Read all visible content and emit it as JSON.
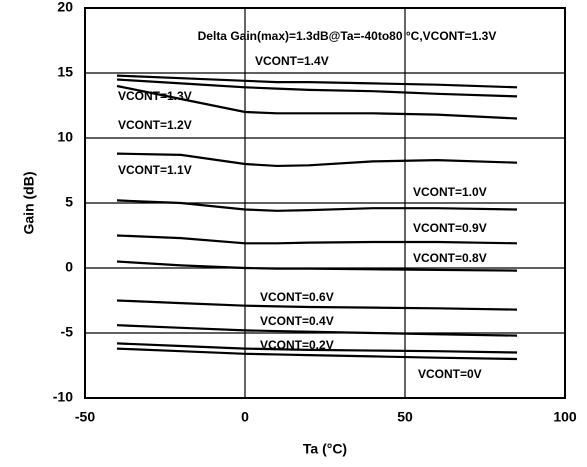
{
  "chart_data": {
    "type": "line",
    "annotation": "Delta Gain(max)=1.3dB@Ta=-40to80 °C,VCONT=1.3V",
    "x_label": "Ta (°C)",
    "y_label": "Gain (dB)",
    "x": [
      -40,
      -20,
      0,
      10,
      20,
      40,
      60,
      85
    ],
    "series": [
      {
        "name": "VCONT=1.4V",
        "color": "#000000",
        "values": [
          14.8,
          14.6,
          14.4,
          14.3,
          14.3,
          14.2,
          14.1,
          13.9
        ]
      },
      {
        "name": "VCONT=1.3V",
        "color": "#000000",
        "values": [
          14.5,
          14.2,
          13.9,
          13.8,
          13.7,
          13.6,
          13.4,
          13.2
        ]
      },
      {
        "name": "VCONT=1.2V",
        "color": "#000000",
        "values": [
          14.0,
          13.0,
          12.0,
          11.9,
          11.9,
          11.9,
          11.8,
          11.5
        ]
      },
      {
        "name": "VCONT=1.1V",
        "color": "#000000",
        "values": [
          8.8,
          8.7,
          8.0,
          7.85,
          7.9,
          8.2,
          8.3,
          8.1
        ]
      },
      {
        "name": "VCONT=1.0V",
        "color": "#000000",
        "values": [
          5.2,
          5.0,
          4.5,
          4.4,
          4.45,
          4.6,
          4.6,
          4.5
        ]
      },
      {
        "name": "VCONT=0.9V",
        "color": "#000000",
        "values": [
          2.5,
          2.3,
          1.9,
          1.9,
          1.95,
          2.0,
          2.0,
          1.9
        ]
      },
      {
        "name": "VCONT=0.8V",
        "color": "#000000",
        "values": [
          0.5,
          0.2,
          0.0,
          -0.05,
          -0.05,
          -0.1,
          -0.15,
          -0.2
        ]
      },
      {
        "name": "VCONT=0.6V",
        "color": "#000000",
        "values": [
          -2.5,
          -2.7,
          -2.9,
          -2.95,
          -3.0,
          -3.05,
          -3.1,
          -3.2
        ]
      },
      {
        "name": "VCONT=0.4V",
        "color": "#000000",
        "values": [
          -4.4,
          -4.6,
          -4.8,
          -4.85,
          -4.9,
          -5.0,
          -5.1,
          -5.2
        ]
      },
      {
        "name": "VCONT=0.2V",
        "color": "#000000",
        "values": [
          -5.8,
          -6.0,
          -6.2,
          -6.25,
          -6.3,
          -6.35,
          -6.4,
          -6.5
        ]
      },
      {
        "name": "VCONT=0V",
        "color": "#000000",
        "values": [
          -6.2,
          -6.4,
          -6.6,
          -6.65,
          -6.7,
          -6.8,
          -6.9,
          -7.0
        ]
      }
    ],
    "xlim": [
      -50,
      100
    ],
    "xticks": [
      -50,
      0,
      50,
      100
    ],
    "ylim": [
      -10,
      20
    ],
    "yticks": [
      -10,
      -5,
      0,
      5,
      10,
      15,
      20
    ],
    "grid": true
  }
}
